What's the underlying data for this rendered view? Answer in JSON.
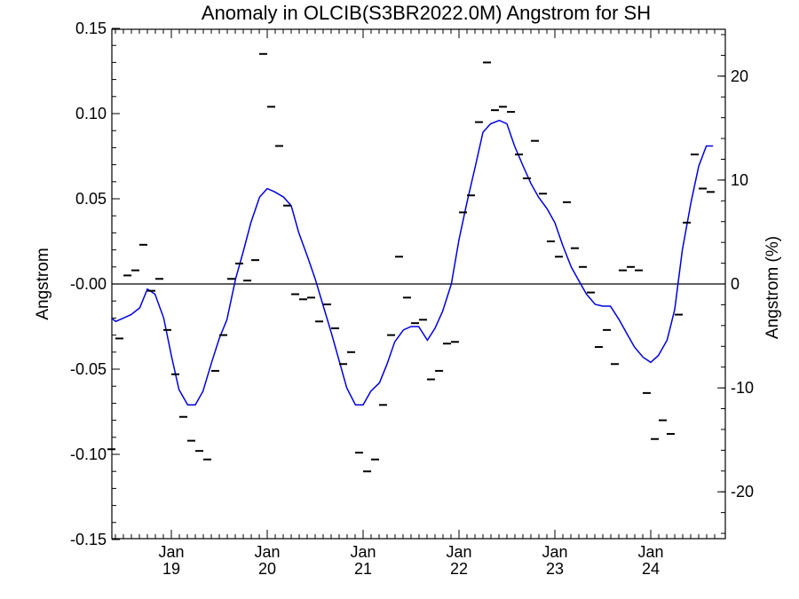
{
  "chart_data": {
    "type": "line",
    "title": "Anomaly in OLCIB(S3BR2022.0M) Angstrom for SH",
    "ylabel": "Angstrom",
    "ylabel_right": "Angstrom (%)",
    "xlabel": "",
    "ylim": [
      -0.15,
      0.15
    ],
    "ylim_right": [
      -24.5,
      24.8
    ],
    "grid": false,
    "x_ticks": [
      {
        "month": "Jan",
        "year": "19",
        "t": 2019.0
      },
      {
        "month": "Jan",
        "year": "20",
        "t": 2020.0
      },
      {
        "month": "Jan",
        "year": "21",
        "t": 2021.0
      },
      {
        "month": "Jan",
        "year": "22",
        "t": 2022.0
      },
      {
        "month": "Jan",
        "year": "23",
        "t": 2023.0
      },
      {
        "month": "Jan",
        "year": "24",
        "t": 2024.0
      }
    ],
    "xlim": [
      2018.375,
      2024.7
    ],
    "y_ticks": [
      "0.15",
      "0.10",
      "0.05",
      "-0.00",
      "-0.05",
      "-0.10",
      "-0.15"
    ],
    "y_tick_values": [
      0.15,
      0.1,
      0.05,
      0.0,
      -0.05,
      -0.1,
      -0.15
    ],
    "y_right_ticks": [
      "20",
      "10",
      "0",
      "-10",
      "-20"
    ],
    "y_right_tick_values": [
      20,
      10,
      0,
      -10,
      -20
    ],
    "zero_line": 0.0,
    "series": [
      {
        "role": "monthly",
        "color": "#000000",
        "marker": "dash",
        "points": [
          [
            2018.375,
            -0.097
          ],
          [
            2018.458,
            -0.032
          ],
          [
            2018.542,
            0.005
          ],
          [
            2018.625,
            0.008
          ],
          [
            2018.708,
            0.023
          ],
          [
            2018.792,
            -0.004
          ],
          [
            2018.875,
            0.003
          ],
          [
            2018.958,
            -0.027
          ],
          [
            2019.042,
            -0.053
          ],
          [
            2019.125,
            -0.078
          ],
          [
            2019.208,
            -0.092
          ],
          [
            2019.292,
            -0.098
          ],
          [
            2019.375,
            -0.103
          ],
          [
            2019.458,
            -0.051
          ],
          [
            2019.542,
            -0.03
          ],
          [
            2019.625,
            0.003
          ],
          [
            2019.708,
            0.012
          ],
          [
            2019.792,
            0.002
          ],
          [
            2019.875,
            0.014
          ],
          [
            2019.958,
            0.135
          ],
          [
            2020.042,
            0.104
          ],
          [
            2020.125,
            0.081
          ],
          [
            2020.208,
            0.046
          ],
          [
            2020.292,
            -0.006
          ],
          [
            2020.375,
            -0.009
          ],
          [
            2020.458,
            -0.008
          ],
          [
            2020.542,
            -0.022
          ],
          [
            2020.625,
            -0.012
          ],
          [
            2020.708,
            -0.026
          ],
          [
            2020.792,
            -0.047
          ],
          [
            2020.875,
            -0.04
          ],
          [
            2020.958,
            -0.099
          ],
          [
            2021.042,
            -0.11
          ],
          [
            2021.125,
            -0.103
          ],
          [
            2021.208,
            -0.071
          ],
          [
            2021.292,
            -0.03
          ],
          [
            2021.375,
            0.016
          ],
          [
            2021.458,
            -0.008
          ],
          [
            2021.542,
            -0.023
          ],
          [
            2021.625,
            -0.021
          ],
          [
            2021.708,
            -0.056
          ],
          [
            2021.792,
            -0.051
          ],
          [
            2021.875,
            -0.035
          ],
          [
            2021.958,
            -0.034
          ],
          [
            2022.042,
            0.042
          ],
          [
            2022.125,
            0.052
          ],
          [
            2022.208,
            0.095
          ],
          [
            2022.292,
            0.13
          ],
          [
            2022.375,
            0.102
          ],
          [
            2022.458,
            0.104
          ],
          [
            2022.542,
            0.101
          ],
          [
            2022.625,
            0.076
          ],
          [
            2022.708,
            0.062
          ],
          [
            2022.792,
            0.084
          ],
          [
            2022.875,
            0.053
          ],
          [
            2022.958,
            0.025
          ],
          [
            2023.042,
            0.016
          ],
          [
            2023.125,
            0.048
          ],
          [
            2023.208,
            0.021
          ],
          [
            2023.292,
            0.01
          ],
          [
            2023.375,
            -0.005
          ],
          [
            2023.458,
            -0.037
          ],
          [
            2023.542,
            -0.027
          ],
          [
            2023.625,
            -0.047
          ],
          [
            2023.708,
            0.008
          ],
          [
            2023.792,
            0.01
          ],
          [
            2023.875,
            0.008
          ],
          [
            2023.958,
            -0.064
          ],
          [
            2024.042,
            -0.091
          ],
          [
            2024.125,
            -0.08
          ],
          [
            2024.208,
            -0.088
          ],
          [
            2024.292,
            -0.018
          ],
          [
            2024.375,
            0.036
          ],
          [
            2024.458,
            0.076
          ],
          [
            2024.542,
            0.056
          ],
          [
            2024.625,
            0.054
          ]
        ]
      },
      {
        "role": "smoothed",
        "color": "#0000dd",
        "marker": "line",
        "points": [
          [
            2018.375,
            -0.02
          ],
          [
            2018.42,
            -0.022
          ],
          [
            2018.5,
            -0.02
          ],
          [
            2018.58,
            -0.018
          ],
          [
            2018.67,
            -0.014
          ],
          [
            2018.75,
            -0.003
          ],
          [
            2018.83,
            -0.006
          ],
          [
            2018.92,
            -0.02
          ],
          [
            2019.0,
            -0.042
          ],
          [
            2019.08,
            -0.062
          ],
          [
            2019.17,
            -0.071
          ],
          [
            2019.25,
            -0.071
          ],
          [
            2019.33,
            -0.063
          ],
          [
            2019.42,
            -0.046
          ],
          [
            2019.5,
            -0.032
          ],
          [
            2019.58,
            -0.021
          ],
          [
            2019.67,
            0.003
          ],
          [
            2019.75,
            0.019
          ],
          [
            2019.83,
            0.036
          ],
          [
            2019.92,
            0.051
          ],
          [
            2020.0,
            0.056
          ],
          [
            2020.08,
            0.054
          ],
          [
            2020.17,
            0.051
          ],
          [
            2020.25,
            0.046
          ],
          [
            2020.33,
            0.03
          ],
          [
            2020.42,
            0.016
          ],
          [
            2020.5,
            0.003
          ],
          [
            2020.58,
            -0.012
          ],
          [
            2020.67,
            -0.029
          ],
          [
            2020.75,
            -0.045
          ],
          [
            2020.83,
            -0.061
          ],
          [
            2020.92,
            -0.071
          ],
          [
            2021.0,
            -0.071
          ],
          [
            2021.08,
            -0.063
          ],
          [
            2021.17,
            -0.058
          ],
          [
            2021.25,
            -0.047
          ],
          [
            2021.33,
            -0.034
          ],
          [
            2021.42,
            -0.027
          ],
          [
            2021.5,
            -0.025
          ],
          [
            2021.58,
            -0.025
          ],
          [
            2021.67,
            -0.033
          ],
          [
            2021.75,
            -0.026
          ],
          [
            2021.83,
            -0.016
          ],
          [
            2021.92,
            0.0
          ],
          [
            2022.0,
            0.026
          ],
          [
            2022.08,
            0.047
          ],
          [
            2022.17,
            0.069
          ],
          [
            2022.25,
            0.089
          ],
          [
            2022.33,
            0.094
          ],
          [
            2022.42,
            0.096
          ],
          [
            2022.5,
            0.094
          ],
          [
            2022.58,
            0.081
          ],
          [
            2022.67,
            0.069
          ],
          [
            2022.75,
            0.059
          ],
          [
            2022.83,
            0.051
          ],
          [
            2022.92,
            0.044
          ],
          [
            2023.0,
            0.036
          ],
          [
            2023.08,
            0.023
          ],
          [
            2023.17,
            0.01
          ],
          [
            2023.25,
            0.002
          ],
          [
            2023.33,
            -0.006
          ],
          [
            2023.42,
            -0.012
          ],
          [
            2023.5,
            -0.013
          ],
          [
            2023.58,
            -0.013
          ],
          [
            2023.67,
            -0.021
          ],
          [
            2023.75,
            -0.029
          ],
          [
            2023.83,
            -0.037
          ],
          [
            2023.92,
            -0.043
          ],
          [
            2024.0,
            -0.046
          ],
          [
            2024.08,
            -0.042
          ],
          [
            2024.17,
            -0.033
          ],
          [
            2024.25,
            -0.015
          ],
          [
            2024.33,
            0.02
          ],
          [
            2024.42,
            0.048
          ],
          [
            2024.5,
            0.069
          ],
          [
            2024.58,
            0.081
          ],
          [
            2024.65,
            0.081
          ]
        ]
      }
    ]
  }
}
